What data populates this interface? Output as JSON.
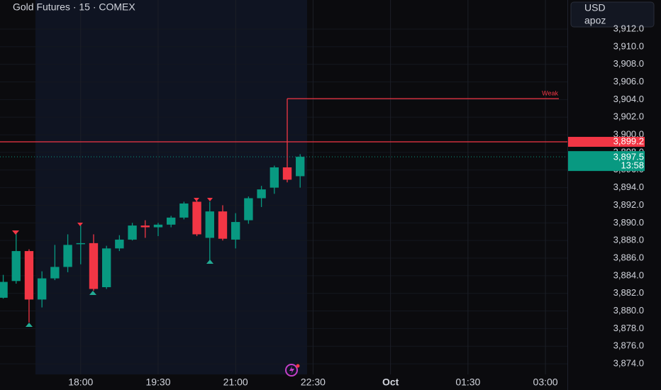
{
  "chart_data": {
    "type": "candlestick",
    "title": "Gold Futures · 15 · COMEX",
    "currency": "USD",
    "user": "apoz",
    "up_color": "#089981",
    "down_color": "#f23645",
    "x": [
      0,
      1,
      2,
      3,
      4,
      5,
      6,
      7,
      8,
      9,
      10,
      11,
      12,
      13,
      14,
      15,
      16,
      17,
      18,
      19,
      20,
      21,
      22,
      23
    ],
    "open": [
      3881.5,
      3883.4,
      3886.8,
      3881.3,
      3883.7,
      3885.0,
      3887.6,
      3887.7,
      3882.7,
      3887.1,
      3888.1,
      3889.7,
      3889.5,
      3889.8,
      3890.6,
      3892.4,
      3888.3,
      3891.3,
      3888.1,
      3890.3,
      3892.8,
      3894.0,
      3896.3,
      3895.3
    ],
    "high": [
      3884.1,
      3889.1,
      3887.0,
      3884.5,
      3887.5,
      3888.7,
      3889.7,
      3888.7,
      3887.4,
      3888.6,
      3890.0,
      3890.3,
      3890.0,
      3890.8,
      3892.4,
      3892.5,
      3892.4,
      3892.0,
      3891.1,
      3893.0,
      3894.2,
      3896.5,
      3904.1,
      3897.8
    ],
    "low": [
      3881.4,
      3883.1,
      3878.7,
      3880.4,
      3883.5,
      3884.4,
      3885.3,
      3882.3,
      3882.5,
      3886.8,
      3888.0,
      3888.3,
      3888.5,
      3889.5,
      3890.4,
      3888.5,
      3885.8,
      3888.0,
      3887.1,
      3889.9,
      3891.8,
      3893.3,
      3894.6,
      3894.0
    ],
    "close": [
      3883.3,
      3886.8,
      3881.3,
      3883.7,
      3885.0,
      3887.5,
      3887.7,
      3882.5,
      3887.1,
      3888.1,
      3889.7,
      3889.5,
      3889.8,
      3890.6,
      3892.2,
      3888.7,
      3891.3,
      3888.2,
      3890.1,
      3892.8,
      3893.8,
      3896.3,
      3894.9,
      3897.5
    ],
    "xlim": [
      -0.25,
      43.7
    ],
    "xticks": [
      {
        "value": 6,
        "label": "18:00"
      },
      {
        "value": 12,
        "label": "19:30"
      },
      {
        "value": 18,
        "label": "21:00"
      },
      {
        "value": 24,
        "label": "22:30"
      },
      {
        "value": 30,
        "label": "Oct"
      },
      {
        "value": 36,
        "label": "01:30"
      },
      {
        "value": 42,
        "label": "03:00"
      }
    ],
    "ylim": [
      3872.8,
      3915.3
    ],
    "yticks": [
      {
        "value": 3874,
        "label": "3,874.0"
      },
      {
        "value": 3876,
        "label": "3,876.0"
      },
      {
        "value": 3878,
        "label": "3,878.0"
      },
      {
        "value": 3880,
        "label": "3,880.0"
      },
      {
        "value": 3882,
        "label": "3,882.0"
      },
      {
        "value": 3884,
        "label": "3,884.0"
      },
      {
        "value": 3886,
        "label": "3,886.0"
      },
      {
        "value": 3888,
        "label": "3,888.0"
      },
      {
        "value": 3890,
        "label": "3,890.0"
      },
      {
        "value": 3892,
        "label": "3,892.0"
      },
      {
        "value": 3894,
        "label": "3,894.0"
      },
      {
        "value": 3896,
        "label": "3,896.0"
      },
      {
        "value": 3898,
        "label": "3,898.0"
      },
      {
        "value": 3900,
        "label": "3,900.0"
      },
      {
        "value": 3902,
        "label": "3,902.0"
      },
      {
        "value": 3904,
        "label": "3,904.0"
      },
      {
        "value": 3906,
        "label": "3,906.0"
      },
      {
        "value": 3908,
        "label": "3,908.0"
      },
      {
        "value": 3910,
        "label": "3,910.0"
      },
      {
        "value": 3912,
        "label": "3,912.0"
      }
    ],
    "grid": true,
    "levels": [
      {
        "value": 3899.2,
        "label": "3,899.2",
        "color": "#f23645"
      }
    ],
    "annotations": [
      {
        "text": "Weak",
        "value": 3904.1,
        "x": 22,
        "color": "#f23645"
      }
    ],
    "current_price": {
      "value": 3897.5,
      "label": "3,897.5",
      "countdown": "13:58",
      "color": "#089981"
    }
  }
}
